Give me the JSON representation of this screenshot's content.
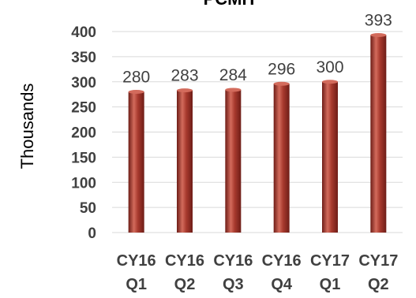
{
  "chart_data": {
    "type": "bar",
    "title": "PCMH",
    "ylabel": "Thousands",
    "xlabel": "",
    "categories": [
      [
        "CY16",
        "Q1"
      ],
      [
        "CY16",
        "Q2"
      ],
      [
        "CY16",
        "Q3"
      ],
      [
        "CY16",
        "Q4"
      ],
      [
        "CY17",
        "Q1"
      ],
      [
        "CY17",
        "Q2"
      ]
    ],
    "values": [
      280,
      283,
      284,
      296,
      300,
      393
    ],
    "data_labels": [
      "280",
      "283",
      "284",
      "296",
      "300",
      "393"
    ],
    "y_ticks": [
      0,
      50,
      100,
      150,
      200,
      250,
      300,
      350,
      400
    ],
    "ylim": [
      0,
      400
    ],
    "grid": true,
    "legend": "none",
    "colors": {
      "bar_main": "#a83a2e",
      "bar_dark": "#6e1d17",
      "bar_light": "#d36b5c",
      "grid": "#d9d9d9",
      "axis_text": "#404040"
    }
  }
}
